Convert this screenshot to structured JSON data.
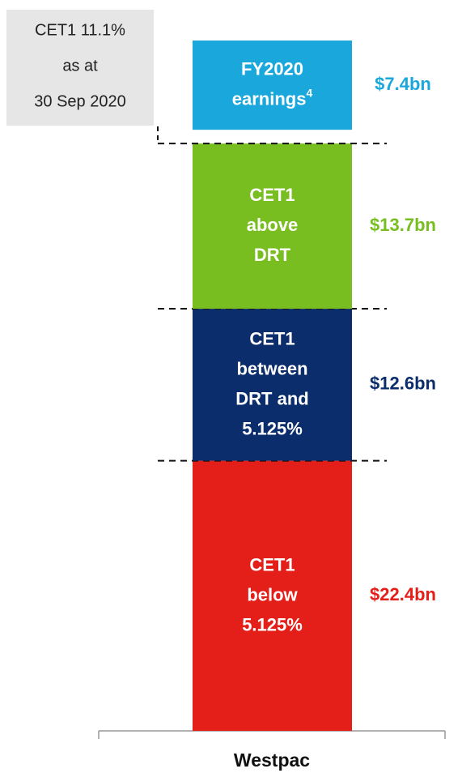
{
  "chart_data": {
    "type": "stacked_bar",
    "categories": [
      "Westpac"
    ],
    "annotation": [
      "CET1 11.1%",
      "as at",
      "30 Sep 2020"
    ],
    "series": [
      {
        "name": [
          "CET1",
          "below",
          "5.125%"
        ],
        "color": "#e41e18",
        "values": [
          22.4
        ],
        "value_labels": [
          "$22.4bn"
        ]
      },
      {
        "name": [
          "CET1",
          "between",
          "DRT and",
          "5.125%"
        ],
        "color": "#0b2d6b",
        "values": [
          12.6
        ],
        "value_labels": [
          "$12.6bn"
        ]
      },
      {
        "name": [
          "CET1",
          "above",
          "DRT"
        ],
        "color": "#78be20",
        "values": [
          13.7
        ],
        "value_labels": [
          "$13.7bn"
        ]
      },
      {
        "name": [
          "FY2020",
          "earnings"
        ],
        "footnote": "4",
        "color": "#1aa8dc",
        "values": [
          7.4
        ],
        "value_labels": [
          "$7.4bn"
        ]
      }
    ]
  }
}
